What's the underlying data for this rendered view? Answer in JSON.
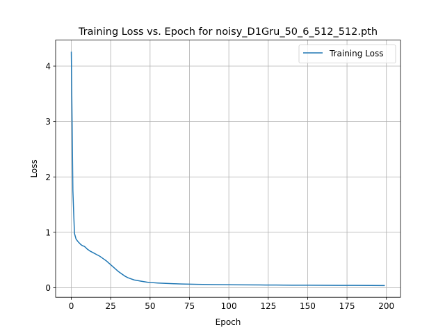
{
  "chart_data": {
    "type": "line",
    "title": "Training Loss vs. Epoch for noisy_D1Gru_50_6_512_512.pth",
    "xlabel": "Epoch",
    "ylabel": "Loss",
    "xlim": [
      -9.95,
      208.95
    ],
    "ylim": [
      -0.172,
      4.47
    ],
    "xticks": [
      0,
      25,
      50,
      75,
      100,
      125,
      150,
      175,
      200
    ],
    "yticks": [
      0,
      1,
      2,
      3,
      4
    ],
    "grid": true,
    "legend": {
      "location": "upper right"
    },
    "series": [
      {
        "name": "Training Loss",
        "color": "#1f77b4",
        "x": [
          0,
          1,
          2,
          3,
          4,
          5,
          6,
          7,
          8,
          9,
          10,
          11,
          12,
          14,
          16,
          18,
          20,
          22,
          24,
          26,
          28,
          30,
          32,
          34,
          36,
          38,
          40,
          42,
          44,
          46,
          48,
          50,
          55,
          60,
          65,
          70,
          75,
          80,
          90,
          100,
          110,
          120,
          130,
          140,
          150,
          160,
          170,
          180,
          190,
          199
        ],
        "y": [
          4.26,
          1.75,
          0.98,
          0.88,
          0.84,
          0.81,
          0.78,
          0.76,
          0.75,
          0.73,
          0.7,
          0.68,
          0.66,
          0.63,
          0.6,
          0.57,
          0.53,
          0.49,
          0.44,
          0.39,
          0.34,
          0.29,
          0.25,
          0.21,
          0.18,
          0.16,
          0.14,
          0.13,
          0.12,
          0.11,
          0.1,
          0.095,
          0.085,
          0.078,
          0.072,
          0.068,
          0.064,
          0.061,
          0.057,
          0.054,
          0.052,
          0.05,
          0.048,
          0.046,
          0.045,
          0.044,
          0.043,
          0.042,
          0.041,
          0.04
        ]
      }
    ]
  }
}
